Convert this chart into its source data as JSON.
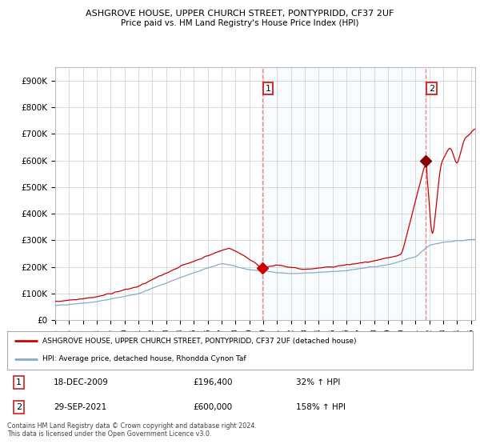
{
  "title": "ASHGROVE HOUSE, UPPER CHURCH STREET, PONTYPRIDD, CF37 2UF",
  "subtitle": "Price paid vs. HM Land Registry's House Price Index (HPI)",
  "ylabel_ticks": [
    "£0",
    "£100K",
    "£200K",
    "£300K",
    "£400K",
    "£500K",
    "£600K",
    "£700K",
    "£800K",
    "£900K"
  ],
  "ytick_vals": [
    0,
    100000,
    200000,
    300000,
    400000,
    500000,
    600000,
    700000,
    800000,
    900000
  ],
  "ylim": [
    0,
    950000
  ],
  "xlim_start": 1995.0,
  "xlim_end": 2025.3,
  "red_line_color": "#cc0000",
  "blue_line_color": "#88aacc",
  "dashed_line_color": "#ee8888",
  "shade_color": "#ddeeff",
  "point1_x": 2009.96,
  "point1_y": 196400,
  "point2_x": 2021.75,
  "point2_y": 600000,
  "legend_line1": "ASHGROVE HOUSE, UPPER CHURCH STREET, PONTYPRIDD, CF37 2UF (detached house)",
  "legend_line2": "HPI: Average price, detached house, Rhondda Cynon Taf",
  "table_row1": [
    "1",
    "18-DEC-2009",
    "£196,400",
    "32% ↑ HPI"
  ],
  "table_row2": [
    "2",
    "29-SEP-2021",
    "£600,000",
    "158% ↑ HPI"
  ],
  "footer": "Contains HM Land Registry data © Crown copyright and database right 2024.\nThis data is licensed under the Open Government Licence v3.0.",
  "background_color": "#ffffff",
  "grid_color": "#cccccc"
}
